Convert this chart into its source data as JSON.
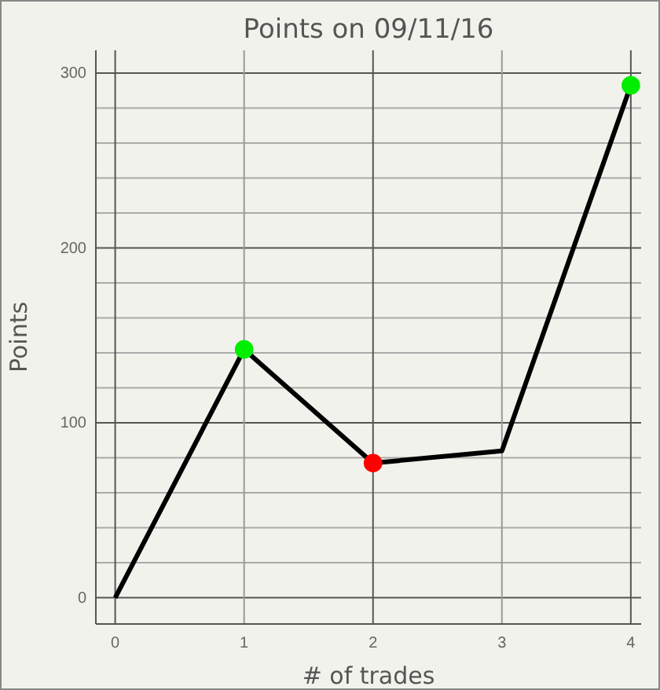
{
  "chart_data": {
    "type": "line",
    "title": "Points on 09/11/16",
    "xlabel": "# of trades",
    "ylabel": "Points",
    "x": [
      0,
      1,
      2,
      3,
      4
    ],
    "xlim": [
      -0.15,
      4.08
    ],
    "xticks": [
      0,
      1,
      2,
      3,
      4
    ],
    "ylim": [
      -15,
      313
    ],
    "yticks": [
      0,
      {
        "value": 20,
        "label": null
      },
      {
        "value": 40,
        "label": null
      },
      {
        "value": 60,
        "label": null
      },
      {
        "value": 80,
        "label": null
      },
      100,
      {
        "value": 120,
        "label": null
      },
      {
        "value": 140,
        "label": null
      },
      {
        "value": 160,
        "label": null
      },
      {
        "value": 180,
        "label": null
      },
      200,
      {
        "value": 220,
        "label": null
      },
      {
        "value": 240,
        "label": null
      },
      {
        "value": 260,
        "label": null
      },
      {
        "value": 280,
        "label": null
      },
      300
    ],
    "grid": true,
    "line_style": "solid",
    "series": [
      {
        "color": "#000000",
        "marker": "none",
        "values": [
          0,
          142,
          77,
          84,
          293
        ]
      },
      {
        "type": "scatter",
        "marker": "circle",
        "x": [
          1,
          2,
          4
        ],
        "values": [
          142,
          77,
          293
        ],
        "colors": [
          "#00ee00",
          "#ff0000",
          "#00ee00"
        ]
      }
    ]
  }
}
